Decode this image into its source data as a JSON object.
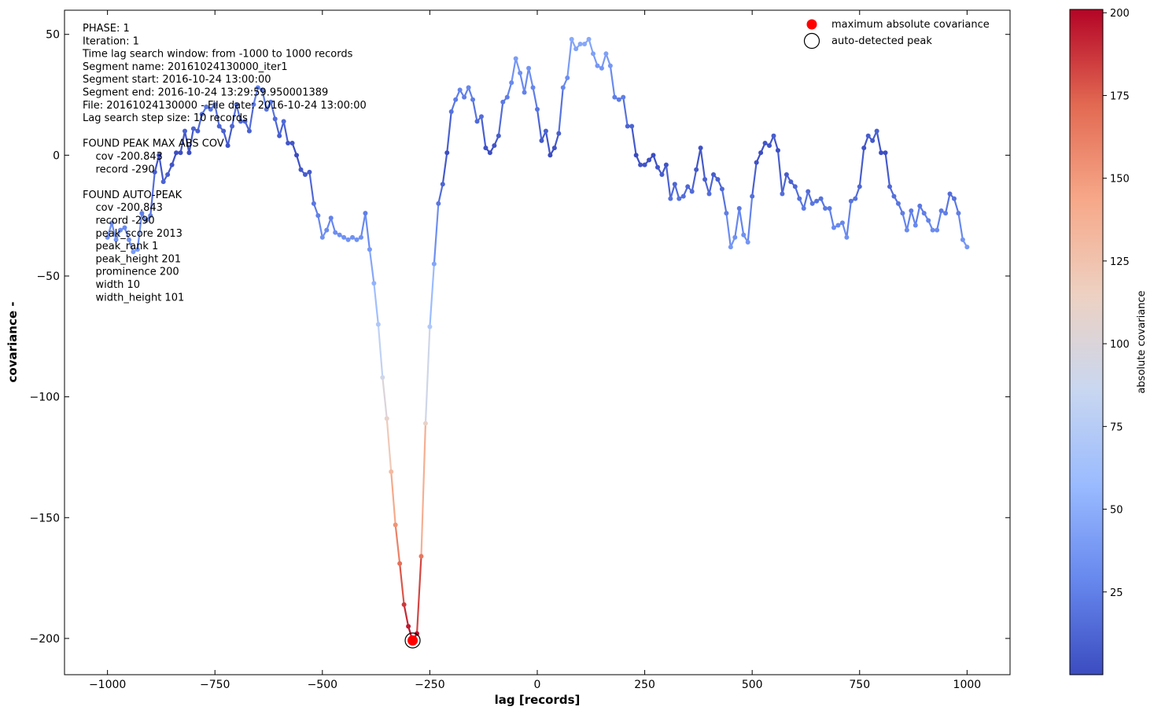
{
  "chart_data": {
    "type": "line",
    "xlabel": "lag [records]",
    "ylabel": "covariance  -",
    "xlim": [
      -1100,
      1100
    ],
    "ylim": [
      -215,
      60
    ],
    "xticks": [
      -1000,
      -750,
      -500,
      -250,
      0,
      250,
      500,
      750,
      1000
    ],
    "xtick_labels": [
      "−1000",
      "−750",
      "−500",
      "−250",
      "0",
      "250",
      "500",
      "750",
      "1000"
    ],
    "yticks": [
      -200,
      -150,
      -100,
      -50,
      0,
      50
    ],
    "ytick_labels": [
      "−200",
      "−150",
      "−100",
      "−50",
      "0",
      "50"
    ],
    "grid": false,
    "legend": {
      "placement": "top-right",
      "entries": [
        "maximum absolute covariance",
        "auto-detected peak"
      ]
    },
    "colorbar": {
      "label": "absolute covariance",
      "range": [
        0,
        201
      ],
      "ticks": [
        25,
        50,
        75,
        100,
        125,
        150,
        175,
        200
      ],
      "colormap": "coolwarm",
      "stops": [
        "#3b4cc0",
        "#6788ee",
        "#9abbff",
        "#c9d7f0",
        "#edd1c2",
        "#f7a889",
        "#e26952",
        "#b40426"
      ]
    },
    "x": [
      -1000,
      -990,
      -980,
      -970,
      -960,
      -950,
      -940,
      -930,
      -920,
      -910,
      -900,
      -890,
      -880,
      -870,
      -860,
      -850,
      -840,
      -830,
      -820,
      -810,
      -800,
      -790,
      -780,
      -770,
      -760,
      -750,
      -740,
      -730,
      -720,
      -710,
      -700,
      -690,
      -680,
      -670,
      -660,
      -650,
      -640,
      -630,
      -620,
      -610,
      -600,
      -590,
      -580,
      -570,
      -560,
      -550,
      -540,
      -530,
      -520,
      -510,
      -500,
      -490,
      -480,
      -470,
      -460,
      -450,
      -440,
      -430,
      -420,
      -410,
      -400,
      -390,
      -380,
      -370,
      -360,
      -350,
      -340,
      -330,
      -320,
      -310,
      -300,
      -290,
      -280,
      -270,
      -260,
      -250,
      -240,
      -230,
      -220,
      -210,
      -200,
      -190,
      -180,
      -170,
      -160,
      -150,
      -140,
      -130,
      -120,
      -110,
      -100,
      -90,
      -80,
      -70,
      -60,
      -50,
      -40,
      -30,
      -20,
      -10,
      0,
      10,
      20,
      30,
      40,
      50,
      60,
      70,
      80,
      90,
      100,
      110,
      120,
      130,
      140,
      150,
      160,
      170,
      180,
      190,
      200,
      210,
      220,
      230,
      240,
      250,
      260,
      270,
      280,
      290,
      300,
      310,
      320,
      330,
      340,
      350,
      360,
      370,
      380,
      390,
      400,
      410,
      420,
      430,
      440,
      450,
      460,
      470,
      480,
      490,
      500,
      510,
      520,
      530,
      540,
      550,
      560,
      570,
      580,
      590,
      600,
      610,
      620,
      630,
      640,
      650,
      660,
      670,
      680,
      690,
      700,
      710,
      720,
      730,
      740,
      750,
      760,
      770,
      780,
      790,
      800,
      810,
      820,
      830,
      840,
      850,
      860,
      870,
      880,
      890,
      900,
      910,
      920,
      930,
      940,
      950,
      960,
      970,
      980,
      990,
      1000
    ],
    "y": [
      -34,
      -28,
      -35,
      -31,
      -30,
      -35,
      -40,
      -39,
      -24,
      -27,
      -25,
      -7,
      0,
      -11,
      -8,
      -4,
      1,
      1,
      10,
      1,
      11,
      10,
      17,
      20,
      19,
      21,
      12,
      10,
      4,
      12,
      21,
      14,
      14,
      10,
      21,
      28,
      27,
      19,
      22,
      15,
      8,
      14,
      5,
      5,
      0,
      -6,
      -8,
      -7,
      -20,
      -25,
      -34,
      -31,
      -26,
      -32,
      -33,
      -34,
      -35,
      -34,
      -35,
      -34,
      -24,
      -39,
      -53,
      -70,
      -92,
      -109,
      -131,
      -153,
      -169,
      -186,
      -195,
      -201,
      -198,
      -166,
      -111,
      -71,
      -45,
      -20,
      -12,
      1,
      18,
      23,
      27,
      24,
      28,
      23,
      14,
      16,
      3,
      1,
      4,
      8,
      22,
      24,
      30,
      40,
      34,
      26,
      36,
      28,
      19,
      6,
      10,
      0,
      3,
      9,
      28,
      32,
      48,
      44,
      46,
      46,
      48,
      42,
      37,
      36,
      42,
      37,
      24,
      23,
      24,
      12,
      12,
      0,
      -4,
      -4,
      -2,
      0,
      -5,
      -8,
      -4,
      -18,
      -12,
      -18,
      -17,
      -13,
      -15,
      -6,
      3,
      -10,
      -16,
      -8,
      -10,
      -14,
      -24,
      -38,
      -34,
      -22,
      -33,
      -36,
      -17,
      -3,
      1,
      5,
      4,
      8,
      2,
      -16,
      -8,
      -11,
      -13,
      -18,
      -22,
      -15,
      -20,
      -19,
      -18,
      -22,
      -22,
      -30,
      -29,
      -28,
      -34,
      -19,
      -18,
      -13,
      3,
      8,
      6,
      10,
      1,
      1,
      -13,
      -17,
      -20,
      -24,
      -31,
      -23,
      -29,
      -21,
      -24,
      -27,
      -31,
      -31,
      -23,
      -24,
      -16,
      -18,
      -24,
      -35,
      -38
    ],
    "peak": {
      "x": -290,
      "y": -200.843
    },
    "annotation_lines": [
      "PHASE: 1",
      "Iteration: 1",
      "Time lag search window: from -1000 to 1000 records",
      "Segment name: 20161024130000_iter1",
      "Segment start: 2016-10-24 13:00:00",
      "Segment end: 2016-10-24 13:29:59.950001389",
      "File: 20161024130000 - File date: 2016-10-24 13:00:00",
      "Lag search step size: 10 records",
      "",
      "FOUND PEAK MAX ABS COV",
      "    cov -200.843",
      "    record -290",
      "",
      "FOUND AUTO-PEAK",
      "    cov -200.843",
      "    record -290",
      "    peak_score 2013",
      "    peak_rank 1",
      "    peak_height 201",
      "    prominence 200",
      "    width 10",
      "    width_height 101"
    ]
  }
}
